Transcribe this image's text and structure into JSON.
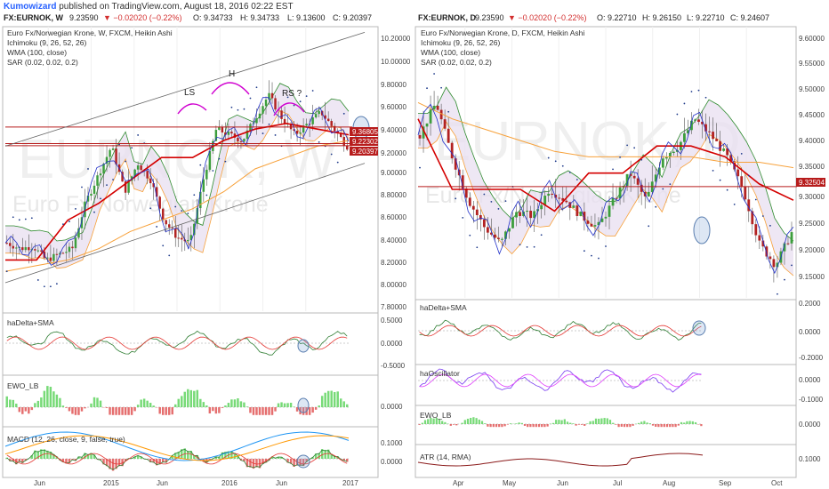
{
  "header": {
    "author": "Kumowizard",
    "published": " published on TradingView.com, August 18, 2016 02:22 EST"
  },
  "colors": {
    "up": "#26a69a",
    "down": "#ef5350",
    "candleUp": "#3c9e3c",
    "candleDown": "#b22222",
    "ichimokuCloud": "#e8dff0",
    "wma": "#f7a13a",
    "sar": "#1e3a8a",
    "kijun": "#d40000",
    "tenkan": "#2230c8",
    "senkou": "#2e8b2e",
    "bigText": "#ececec",
    "priceTag": "#b71c1c"
  },
  "left": {
    "topline": {
      "sym": "FX:EURNOK, W",
      "last": "9.23590",
      "chg": "▼ −0.02020 (−0.22%)",
      "o": "O: 9.34733",
      "h": "H: 9.34733",
      "l": "L: 9.13600",
      "c": "C: 9.20397"
    },
    "watermark": {
      "sym": "EURNOK, W",
      "name": "Euro Fx/Norwegian Krone"
    },
    "title": "Euro Fx/Norwegian Krone, W, FXCM, Heikin Ashi",
    "legends": [
      "Ichimoku (9, 26, 52, 26)",
      "WMA (100, close)",
      "SAR (0.02, 0.02, 0.2)"
    ],
    "annotations": [
      "LS",
      "H",
      "RS ?"
    ],
    "yticks": [
      "10.20000",
      "10.00000",
      "9.80000",
      "9.60000",
      "9.40000",
      "9.20000",
      "9.00000",
      "8.80000",
      "8.60000",
      "8.40000",
      "8.20000",
      "8.00000",
      "7.80000"
    ],
    "pricetags": [
      "9.36805",
      "9.22302",
      "9.20397"
    ],
    "panels": [
      {
        "title": "haDelta+SMA",
        "ticks": [
          "0.5000",
          "0.0000",
          "-0.5000"
        ]
      },
      {
        "title": "EWO_LB",
        "ticks": [
          "0.0000"
        ]
      },
      {
        "title": "MACD (12, 26, close, 9, false, true)",
        "ticks": [
          "0.1000",
          "0.0000"
        ]
      }
    ],
    "xticks": [
      "Jun",
      "2015",
      "Jun",
      "2016",
      "Jun",
      "2017"
    ]
  },
  "right": {
    "topline": {
      "sym": "FX:EURNOK, D",
      "last": "9.23590",
      "chg": "▼ −0.02020 (−0.22%)",
      "o": "O: 9.22710",
      "h": "H: 9.26150",
      "l": "L: 9.22710",
      "c": "C: 9.24607"
    },
    "watermark": {
      "sym": "EURNOK, D",
      "name": "Euro Fx/Norwegian Krone"
    },
    "title": "Euro Fx/Norwegian Krone, D, FXCM, Heikin Ashi",
    "legends": [
      "Ichimoku (9, 26, 52, 26)",
      "WMA (100, close)",
      "SAR (0.02, 0.02, 0.2)"
    ],
    "yticks": [
      "9.60000",
      "9.55000",
      "9.50000",
      "9.45000",
      "9.40000",
      "9.35000",
      "9.30000",
      "9.25000",
      "9.20000",
      "9.15000"
    ],
    "pricetags": [
      "9.32504"
    ],
    "panels": [
      {
        "title": "haDelta+SMA",
        "ticks": [
          "0.2000",
          "0.0000",
          "-0.2000"
        ]
      },
      {
        "title": "haOscillator",
        "ticks": [
          "0.0000",
          "-0.1000"
        ]
      },
      {
        "title": "EWO_LB",
        "ticks": [
          "0.0000"
        ]
      },
      {
        "title": "ATR (14, RMA)",
        "ticks": [
          "0.1000"
        ]
      }
    ],
    "xticks": [
      "Apr",
      "May",
      "Jun",
      "Jul",
      "Aug",
      "Sep",
      "Oct"
    ]
  },
  "chart_data": [
    {
      "type": "candlestick",
      "title": "Euro Fx/Norwegian Krone, W, FXCM, Heikin Ashi",
      "ylim": [
        7.75,
        10.25
      ],
      "x_ticks": [
        "Jun",
        "2015",
        "Jun",
        "2016",
        "Jun",
        "2017"
      ],
      "close_anchors": [
        8.35,
        8.3,
        8.32,
        8.2,
        8.25,
        8.3,
        8.7,
        8.95,
        9.2,
        8.8,
        9.05,
        8.9,
        8.55,
        8.4,
        8.35,
        8.9,
        9.35,
        9.3,
        9.25,
        9.45,
        9.65,
        9.45,
        9.3,
        9.4,
        9.5,
        9.35,
        9.2
      ],
      "series": [
        {
          "name": "WMA (100, close)",
          "values": [
            8.1,
            8.15,
            8.2,
            8.3,
            8.45,
            8.55,
            8.65,
            8.8,
            9.0,
            9.1,
            9.2,
            9.25
          ]
        },
        {
          "name": "Ichimoku kijun",
          "values": [
            8.2,
            8.2,
            8.55,
            8.7,
            8.9,
            9.1,
            9.1,
            9.25,
            9.35,
            9.4,
            9.35,
            9.3
          ]
        }
      ],
      "price_levels": [
        9.36805,
        9.22302,
        9.20397
      ]
    },
    {
      "type": "candlestick",
      "title": "Euro Fx/Norwegian Krone, D, FXCM, Heikin Ashi",
      "ylim": [
        9.12,
        9.62
      ],
      "x_ticks": [
        "Apr",
        "May",
        "Jun",
        "Jul",
        "Aug",
        "Sep",
        "Oct"
      ],
      "close_anchors": [
        9.42,
        9.48,
        9.38,
        9.3,
        9.25,
        9.22,
        9.28,
        9.27,
        9.32,
        9.3,
        9.27,
        9.25,
        9.3,
        9.35,
        9.3,
        9.38,
        9.4,
        9.45,
        9.42,
        9.38,
        9.32,
        9.22,
        9.18,
        9.24
      ],
      "series": [
        {
          "name": "WMA (100, close)",
          "values": [
            9.48,
            9.45,
            9.43,
            9.41,
            9.39,
            9.38,
            9.38,
            9.38,
            9.38,
            9.37,
            9.37,
            9.36
          ]
        },
        {
          "name": "Ichimoku kijun",
          "values": [
            9.45,
            9.32,
            9.32,
            9.32,
            9.28,
            9.35,
            9.35,
            9.4,
            9.4,
            9.38,
            9.33,
            9.3
          ]
        }
      ],
      "price_levels": [
        9.32504
      ]
    }
  ]
}
